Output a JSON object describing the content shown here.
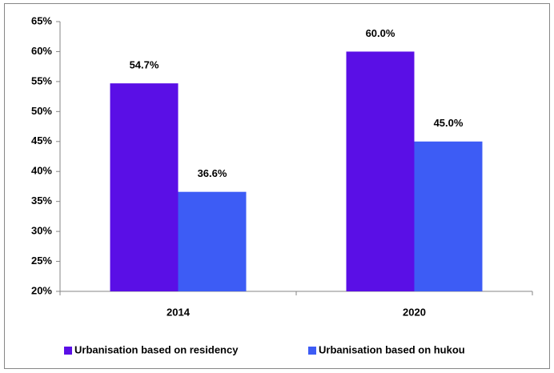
{
  "chart_data": {
    "type": "bar",
    "categories": [
      "2014",
      "2020"
    ],
    "series": [
      {
        "name": "Urbanisation based on residency",
        "color": "#5a0fe6",
        "values": [
          54.7,
          60.0
        ],
        "value_labels": [
          "54.7%",
          "60.0%"
        ]
      },
      {
        "name": "Urbanisation based on hukou",
        "color": "#3d5cf5",
        "values": [
          36.6,
          45.0
        ],
        "value_labels": [
          "36.6%",
          "45.0%"
        ]
      }
    ],
    "ylim": [
      20,
      65
    ],
    "yticks": [
      {
        "value": 20,
        "label": "20%"
      },
      {
        "value": 25,
        "label": "25%"
      },
      {
        "value": 30,
        "label": "30%"
      },
      {
        "value": 35,
        "label": "35%"
      },
      {
        "value": 40,
        "label": "40%"
      },
      {
        "value": 45,
        "label": "45%"
      },
      {
        "value": 50,
        "label": "50%"
      },
      {
        "value": 55,
        "label": "55%"
      },
      {
        "value": 60,
        "label": "60%"
      },
      {
        "value": 65,
        "label": "65%"
      }
    ],
    "grid": false,
    "legend": "bottom"
  }
}
